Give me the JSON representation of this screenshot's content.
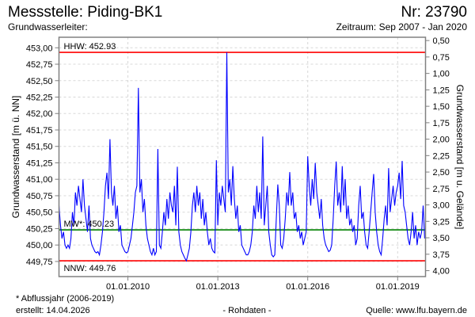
{
  "header": {
    "title": "Messstelle: Piding-BK1",
    "number": "Nr: 23790",
    "aquifer_label": "Grundwasserleiter:",
    "period": "Zeitraum: Sep 2007 - Jan 2020"
  },
  "footer": {
    "note": "* Abflussjahr (2006-2019)",
    "created": "erstellt:  14.04.2026",
    "data_type": "- Rohdaten -",
    "source": "Quelle: www.lfu.bayern.de"
  },
  "colors": {
    "series": "#0000ff",
    "hhw_nnw": "#ff0000",
    "mw": "#008000",
    "grid": "#d8d8d8",
    "source_link": "#0000ff"
  },
  "chart_data": {
    "type": "line",
    "title": "Messstelle: Piding-BK1",
    "ylabel": "Grundwasserstand [m ü. NN]",
    "ylabel_right": "Grundwasserstand [m u. Gelände]",
    "xlabel": "",
    "xlim": [
      2007.7,
      2019.93
    ],
    "ylim": [
      449.52,
      453.16
    ],
    "ground_level": 453.61,
    "grid": true,
    "x_ticks": [
      {
        "value": 2010,
        "label": "01.01.2010"
      },
      {
        "value": 2013,
        "label": "01.01.2013"
      },
      {
        "value": 2016,
        "label": "01.01.2016"
      },
      {
        "value": 2019,
        "label": "01.01.2019"
      }
    ],
    "y_ticks": [
      "449,75",
      "450,00",
      "450,25",
      "450,50",
      "450,75",
      "451,00",
      "451,25",
      "451,50",
      "451,75",
      "452,00",
      "452,25",
      "452,50",
      "452,75",
      "453,00"
    ],
    "y_ticks_right": [
      "0,50",
      "0,75",
      "1,00",
      "1,25",
      "1,50",
      "1,75",
      "2,00",
      "2,25",
      "2,50",
      "2,75",
      "3,00",
      "3,25",
      "3,50",
      "3,75",
      "4,00"
    ],
    "reference_lines": [
      {
        "name": "HHW",
        "label": "HHW: 452.93",
        "value": 452.93,
        "color": "#ff0000"
      },
      {
        "name": "MW",
        "label": "MW*: 450.23",
        "value": 450.23,
        "color": "#008000"
      },
      {
        "name": "NNW",
        "label": "NNW: 449.76",
        "value": 449.76,
        "color": "#ff0000"
      }
    ],
    "series": [
      {
        "name": "Grundwasserstand",
        "x_start": 2007.7,
        "x_step": 0.05,
        "values": [
          450.6,
          450.3,
          450.1,
          450.2,
          450.0,
          449.95,
          450.0,
          449.95,
          450.1,
          450.5,
          450.3,
          450.8,
          450.6,
          450.9,
          450.7,
          450.5,
          451.0,
          450.6,
          450.4,
          450.2,
          450.6,
          450.1,
          450.0,
          449.95,
          449.9,
          449.88,
          449.9,
          449.85,
          450.0,
          450.2,
          450.5,
          450.9,
          451.1,
          450.7,
          451.61,
          450.8,
          450.6,
          450.9,
          450.4,
          450.6,
          450.2,
          450.3,
          450.0,
          449.95,
          449.9,
          449.88,
          449.9,
          450.0,
          450.1,
          450.3,
          450.5,
          450.8,
          450.9,
          452.39,
          450.8,
          451.0,
          450.5,
          450.7,
          450.3,
          450.1,
          450.0,
          449.9,
          449.85,
          449.95,
          449.85,
          449.9,
          451.46,
          450.0,
          449.95,
          450.2,
          450.5,
          450.3,
          450.7,
          450.4,
          450.8,
          450.6,
          450.5,
          450.9,
          450.3,
          451.19,
          450.2,
          450.0,
          449.9,
          449.85,
          449.8,
          449.76,
          449.85,
          449.95,
          450.2,
          450.6,
          450.8,
          450.5,
          450.9,
          450.6,
          450.8,
          450.4,
          450.7,
          450.3,
          450.5,
          450.2,
          450.0,
          450.1,
          449.95,
          449.9,
          449.88,
          451.29,
          450.3,
          450.8,
          450.6,
          450.9,
          450.7,
          450.5,
          452.93,
          450.8,
          451.0,
          450.6,
          451.2,
          450.7,
          450.4,
          450.6,
          450.2,
          450.3,
          450.0,
          449.95,
          449.9,
          449.85,
          449.85,
          449.9,
          450.0,
          450.2,
          450.6,
          450.4,
          450.9,
          450.5,
          450.8,
          450.4,
          451.65,
          450.3,
          450.6,
          450.9,
          450.2,
          450.0,
          449.85,
          449.82,
          449.85,
          450.4,
          450.92,
          450.6,
          450.0,
          449.95,
          450.1,
          450.4,
          450.8,
          450.6,
          451.11,
          450.6,
          450.8,
          450.4,
          450.5,
          450.2,
          450.3,
          450.1,
          450.2,
          450.0,
          450.1,
          450.2,
          451.35,
          450.9,
          450.6,
          451.0,
          450.7,
          451.25,
          450.8,
          450.6,
          450.4,
          450.7,
          450.3,
          450.1,
          450.0,
          449.95,
          449.9,
          449.92,
          450.0,
          450.4,
          450.9,
          451.27,
          450.6,
          450.8,
          450.5,
          451.2,
          450.6,
          451.0,
          450.4,
          450.6,
          450.3,
          450.4,
          450.2,
          450.3,
          450.0,
          450.1,
          450.6,
          450.9,
          450.4,
          450.5,
          450.2,
          450.0,
          449.95,
          450.2,
          450.5,
          450.8,
          451.08,
          450.5,
          450.2,
          450.0,
          449.9,
          449.85,
          450.1,
          450.4,
          450.6,
          450.3,
          451.17,
          450.5,
          450.7,
          450.9,
          450.6,
          450.8,
          450.9,
          451.1,
          450.7,
          451.28,
          450.6,
          450.5,
          450.3,
          450.1,
          450.0,
          450.2,
          450.5,
          450.1,
          450.3,
          450.0,
          450.2,
          450.1,
          450.2,
          450.6,
          450.1
        ]
      }
    ]
  }
}
